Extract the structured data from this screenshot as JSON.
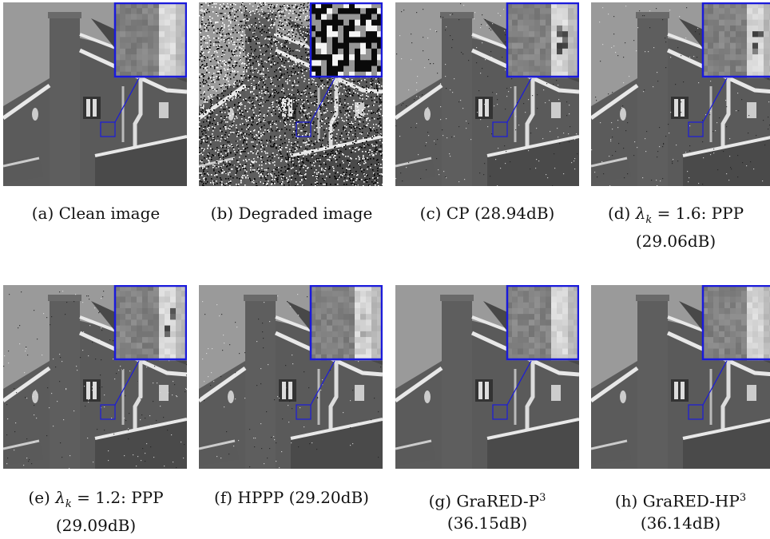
{
  "figure": {
    "panels": [
      {
        "id": "a",
        "variant": "clean",
        "caption_lines": [
          "(a) Clean image",
          ""
        ]
      },
      {
        "id": "b",
        "variant": "noisy",
        "caption_lines": [
          "(b) Degraded image",
          ""
        ]
      },
      {
        "id": "c",
        "variant": "cp",
        "caption_lines": [
          "(c) CP (28.94dB)",
          ""
        ]
      },
      {
        "id": "d",
        "variant": "ppp",
        "caption_lines": [
          "(d) λk = 1.6: PPP",
          "(29.06dB)"
        ]
      },
      {
        "id": "e",
        "variant": "ppp",
        "caption_lines": [
          "(e) λk = 1.2: PPP",
          "(29.09dB)"
        ]
      },
      {
        "id": "f",
        "variant": "hppp",
        "caption_lines": [
          "(f) HPPP (29.20dB)",
          ""
        ]
      },
      {
        "id": "g",
        "variant": "grared",
        "caption_lines": [
          "(g) GraRED-P3",
          "(36.15dB)"
        ]
      },
      {
        "id": "h",
        "variant": "grared",
        "caption_lines": [
          "(h) GraRED-HP3",
          "(36.14dB)"
        ]
      }
    ],
    "colors": {
      "zoom_box": "#1a1adb",
      "sky": "#9a9a9a",
      "brick": "#5a5a5a",
      "roof": "#484848",
      "trim": "#e8e8e8"
    }
  }
}
